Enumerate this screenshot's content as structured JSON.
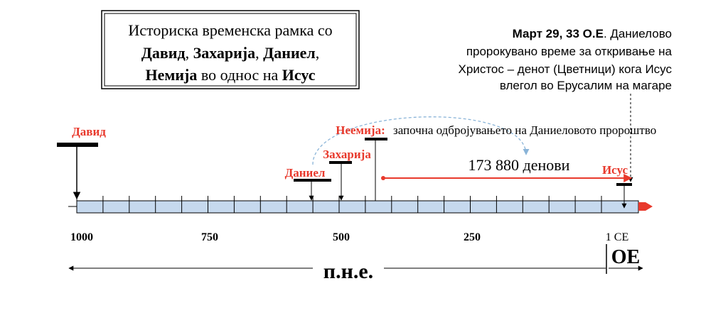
{
  "title": {
    "line1": "Историска временска рамка со",
    "line2": [
      "Давид",
      ", ",
      "Захарија",
      ", ",
      "Даниел",
      ","
    ],
    "line3": [
      "Немија",
      " во однос на ",
      "Исус"
    ]
  },
  "note": {
    "lead": "Март 29, 33 О.Е",
    "rest": ". Даниелово",
    "lines": [
      "пророкувано време за откривање на",
      "Христос – денот (Цветници) кога Исус",
      "влегол во Ерусалим на магаре"
    ]
  },
  "events": [
    {
      "label": "Давид"
    },
    {
      "label": "Даниел"
    },
    {
      "label": "Захарија"
    },
    {
      "label": "Неемија:",
      "description": "започна одбројувањето на Даниеловото пророштво"
    },
    {
      "label": "Исус"
    }
  ],
  "span_label": "173 880 денови",
  "axis_labels": [
    "1000",
    "750",
    "500",
    "250",
    "1 CE"
  ],
  "era_bce": "п.н.е.",
  "era_ce": "ОЕ"
}
